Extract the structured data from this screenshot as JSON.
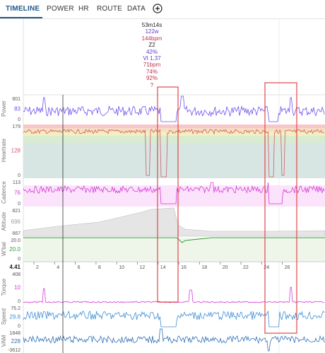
{
  "tabs": [
    {
      "label": "TIMELINE",
      "active": true
    },
    {
      "label": "POWER",
      "active": false
    },
    {
      "label": "HR",
      "active": false
    },
    {
      "label": "ROUTE",
      "active": false
    },
    {
      "label": "DATA",
      "active": false
    }
  ],
  "add_icon": "plus-circle-icon",
  "tooltip": [
    {
      "text": "53m14s",
      "color": "#222222"
    },
    {
      "text": "122w",
      "color": "#5a3fd1"
    },
    {
      "text": "144bpm",
      "color": "#c0334d"
    },
    {
      "text": "Z2",
      "color": "#222222"
    },
    {
      "text": "42%",
      "color": "#5a3fd1"
    },
    {
      "text": "VI 1.37",
      "color": "#5a3fd1"
    },
    {
      "text": "71bpm",
      "color": "#c0334d"
    },
    {
      "text": "74%",
      "color": "#c0334d"
    },
    {
      "text": "92%",
      "color": "#c0334d"
    },
    {
      "text": "?",
      "color": "#c0334d"
    }
  ],
  "panels": {
    "power": {
      "label": "Power",
      "max": "601",
      "current": "83",
      "min": "0",
      "color": "#6f4ff0"
    },
    "heartrate": {
      "label": "Heartrate",
      "max": "179",
      "current": "128",
      "min": "0",
      "color": "#d05a6a"
    },
    "cadence": {
      "label": "Cadence",
      "max": "113",
      "current": "76",
      "min": "0",
      "color": "#d63ad6"
    },
    "altitude": {
      "label": "Altitude",
      "max": "821",
      "current": "696",
      "min": "667",
      "color": "#9e9e9e"
    },
    "wbal": {
      "label": "W'bal",
      "max": "20.0",
      "current": "20.0",
      "min": "0",
      "color": "#3a9a3a"
    },
    "torque": {
      "label": "Torque",
      "max": "408",
      "current": "10",
      "min": "0",
      "color": "#d63ad6"
    },
    "speed": {
      "label": "Speed",
      "max": "75.2",
      "current": "29.8",
      "min": "0",
      "color": "#3d8fd6"
    },
    "vam": {
      "label": "VAM",
      "max": "1848",
      "current": "228",
      "min": "-3612",
      "color": "#2f6fb8"
    }
  },
  "distance_axis": {
    "current": "4.41",
    "ticks": [
      "2",
      "4",
      "6",
      "8",
      "10",
      "12",
      "14",
      "16",
      "18",
      "20",
      "22",
      "24",
      "26"
    ]
  }
}
